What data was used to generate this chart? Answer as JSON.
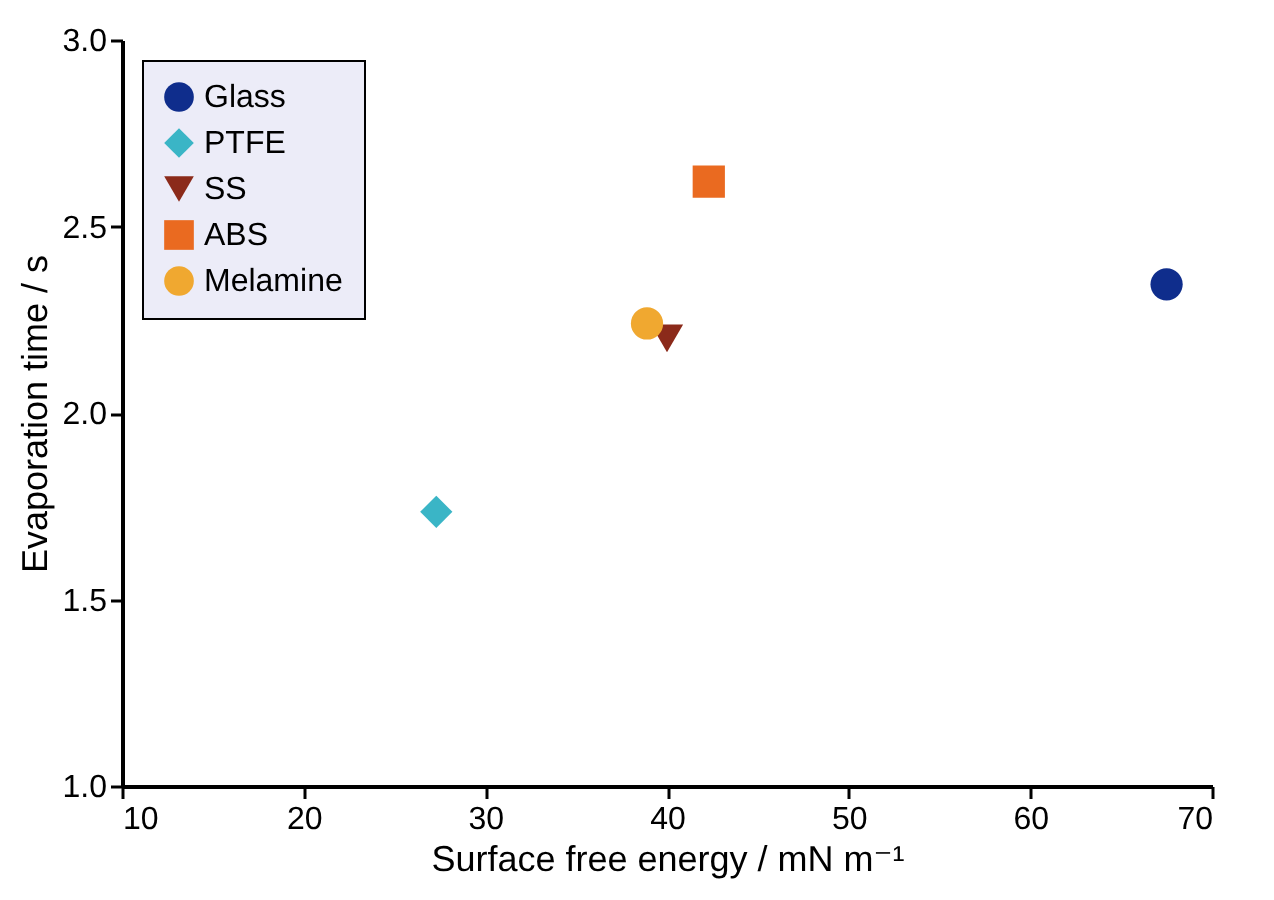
{
  "chart_data": {
    "type": "scatter",
    "xlabel": "Surface free energy / mN m⁻¹",
    "ylabel": "Evaporation time / s",
    "xlim": [
      10,
      70
    ],
    "xticks": [
      10,
      20,
      30,
      40,
      50,
      60,
      70
    ],
    "ylim": [
      1,
      3
    ],
    "yticks": [
      {
        "value": 1,
        "label": "1.0"
      },
      {
        "value": 1.5,
        "label": "1.5"
      },
      {
        "value": 2,
        "label": "2.0"
      },
      {
        "value": 2.5,
        "label": "2.5"
      },
      {
        "value": 3,
        "label": "3.0"
      }
    ],
    "legend": "top left",
    "series": [
      {
        "name": "Glass",
        "color": "#0f2d8c",
        "marker": "circle",
        "x": [
          67.5
        ],
        "values": [
          2.345
        ]
      },
      {
        "name": "PTFE",
        "color": "#3ab5c6",
        "marker": "diamond",
        "x": [
          27.3
        ],
        "values": [
          1.735
        ]
      },
      {
        "name": "SS",
        "color": "#8b2a1a",
        "marker": "triangle",
        "x": [
          40
        ],
        "values": [
          2.2
        ]
      },
      {
        "name": "ABS",
        "color": "#ea6a20",
        "marker": "square",
        "x": [
          42.3
        ],
        "values": [
          2.62
        ]
      },
      {
        "name": "Melamine",
        "color": "#f0a830",
        "marker": "circle",
        "x": [
          38.9
        ],
        "values": [
          2.24
        ]
      }
    ]
  }
}
